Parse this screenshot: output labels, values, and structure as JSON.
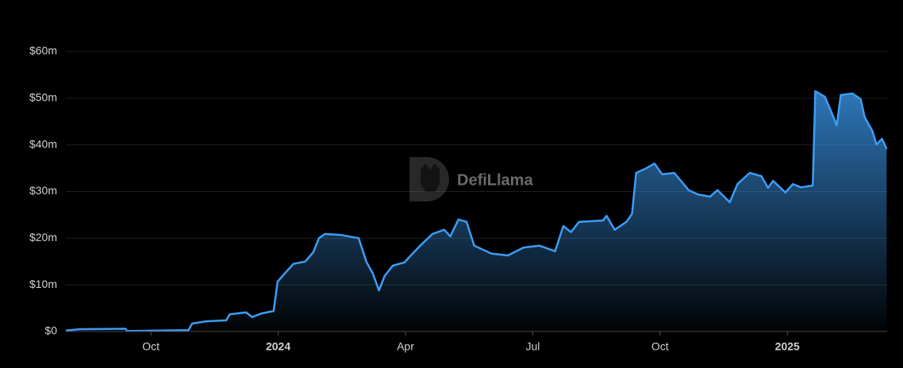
{
  "chart_data": {
    "type": "area",
    "watermark": "DefiLlama",
    "x": [
      2023.583,
      2023.61,
      2023.7,
      2023.703,
      2023.824,
      2023.831,
      2023.859,
      2023.898,
      2023.905,
      2023.937,
      2023.949,
      2023.968,
      2023.991,
      2023.999,
      2024.014,
      2024.03,
      2024.053,
      2024.069,
      2024.08,
      2024.092,
      2024.123,
      2024.158,
      2024.173,
      2024.186,
      2024.198,
      2024.209,
      2024.225,
      2024.248,
      2024.264,
      2024.279,
      2024.303,
      2024.326,
      2024.338,
      2024.354,
      2024.37,
      2024.385,
      2024.419,
      2024.451,
      2024.482,
      2024.513,
      2024.544,
      2024.56,
      2024.575,
      2024.591,
      2024.638,
      2024.645,
      2024.661,
      2024.684,
      2024.695,
      2024.703,
      2024.723,
      2024.739,
      2024.754,
      2024.778,
      2024.806,
      2024.824,
      2024.848,
      2024.863,
      2024.887,
      2024.902,
      2024.926,
      2024.949,
      2024.962,
      2024.972,
      2024.996,
      2025.011,
      2025.027,
      2025.05,
      2025.055,
      2025.074,
      2025.089,
      2025.097,
      2025.105,
      2025.128,
      2025.144,
      2025.152,
      2025.167,
      2025.175,
      2025.186,
      2025.195
    ],
    "values": [
      0.2,
      0.5,
      0.6,
      0.1,
      0.3,
      1.7,
      2.2,
      2.4,
      3.7,
      4.1,
      3.1,
      3.9,
      4.4,
      10.7,
      12.6,
      14.5,
      15,
      17,
      20,
      20.9,
      20.7,
      20,
      15,
      12.4,
      8.8,
      11.9,
      14.1,
      14.8,
      16.7,
      18.4,
      20.9,
      21.8,
      20.4,
      24,
      23.5,
      18.4,
      16.7,
      16.3,
      18,
      18.4,
      17.2,
      22.6,
      21.3,
      23.5,
      23.8,
      24.8,
      21.8,
      23.5,
      25.2,
      34,
      35,
      36,
      33.7,
      34,
      30.3,
      29.4,
      28.9,
      30.3,
      27.7,
      31.6,
      34,
      33.3,
      30.8,
      32.3,
      29.8,
      31.6,
      30.9,
      31.3,
      51.5,
      50.3,
      46.4,
      44.2,
      50.7,
      51,
      49.8,
      45.9,
      43,
      40.1,
      41.3,
      39.1
    ],
    "color": "#3d9df5",
    "xlim": [
      2023.583,
      2025.196
    ],
    "xticks": [
      {
        "value": 2023.75,
        "label": "Oct"
      },
      2024,
      {
        "value": 2024.25,
        "label": "Apr"
      },
      {
        "value": 2024.5,
        "label": "Jul"
      },
      {
        "value": 2024.75,
        "label": "Oct"
      },
      2025
    ],
    "ylim": [
      0,
      60
    ],
    "yticks": [
      {
        "value": 0,
        "label": "$0"
      },
      {
        "value": 10,
        "label": "$10m"
      },
      {
        "value": 20,
        "label": "$20m"
      },
      {
        "value": 30,
        "label": "$30m"
      },
      {
        "value": 40,
        "label": "$40m"
      },
      {
        "value": 50,
        "label": "$50m"
      },
      {
        "value": 60,
        "label": "$60m"
      }
    ],
    "grid": true
  }
}
